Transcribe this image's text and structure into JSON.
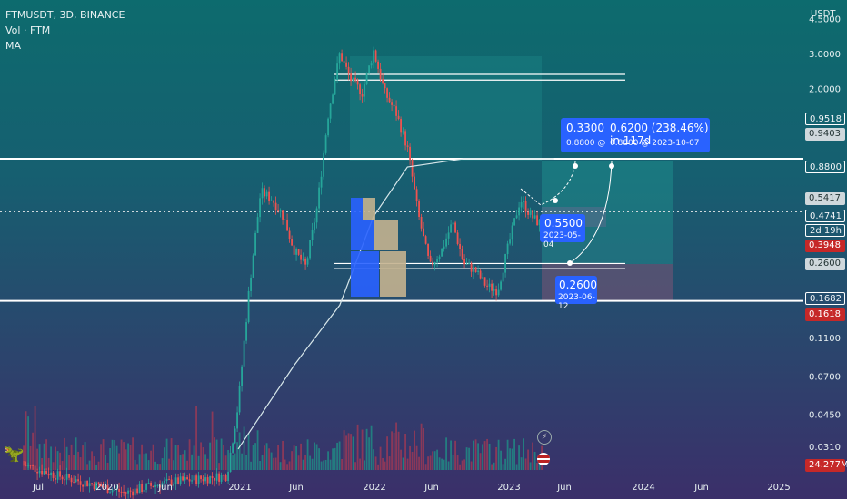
{
  "legend": {
    "symbol": "FTMUSDT, 3D, BINANCE",
    "line2": "Vol · FTM",
    "line3": "MA"
  },
  "colors": {
    "up": "#26a69a",
    "down": "#ef5350",
    "vol_up": "#1f8f86",
    "vol_down": "#a03a55",
    "hline": "#ffffff",
    "ma": "#d7e7ea",
    "tool": "#2962ff",
    "text": "#e8f1f2"
  },
  "chart_data": {
    "type": "candlestick",
    "symbol": "FTMUSDT",
    "interval": "3D",
    "exchange": "BINANCE",
    "y_scale": "log",
    "y_unit": "USDT",
    "ylim": [
      0.02,
      5.5
    ],
    "x_tick_labels": [
      "Jul",
      "2020",
      "Jun",
      "2021",
      "Jun",
      "2022",
      "Jun",
      "2023",
      "Jun",
      "2024",
      "Jun",
      "2025"
    ],
    "y_tick_labels": [
      "4.5000",
      "3.0000",
      "2.0000",
      "0.8800",
      "0.1100",
      "0.0700",
      "0.0450",
      "0.0310"
    ],
    "price_tags": [
      {
        "label": "0.9518",
        "style": "dark"
      },
      {
        "label": "0.9403",
        "style": "grey"
      },
      {
        "label": "0.8800",
        "style": "dark"
      },
      {
        "label": "0.5417",
        "style": "grey"
      },
      {
        "label": "0.4741",
        "style": "dark"
      },
      {
        "label": "2d 19h",
        "style": "dark"
      },
      {
        "label": "0.3948",
        "style": "red"
      },
      {
        "label": "0.2600",
        "style": "grey"
      },
      {
        "label": "0.1682",
        "style": "dark"
      },
      {
        "label": "0.1618",
        "style": "red"
      },
      {
        "label": "24.277M",
        "style": "red"
      }
    ],
    "close_series": [
      {
        "date": "2019-06",
        "close": 0.025
      },
      {
        "date": "2019-09",
        "close": 0.022
      },
      {
        "date": "2019-12",
        "close": 0.02
      },
      {
        "date": "2020-03",
        "close": 0.018
      },
      {
        "date": "2020-06",
        "close": 0.02
      },
      {
        "date": "2020-09",
        "close": 0.021
      },
      {
        "date": "2020-12",
        "close": 0.022
      },
      {
        "date": "2021-01",
        "close": 0.05
      },
      {
        "date": "2021-02",
        "close": 0.2
      },
      {
        "date": "2021-03",
        "close": 0.6
      },
      {
        "date": "2021-04",
        "close": 0.55
      },
      {
        "date": "2021-05",
        "close": 0.45
      },
      {
        "date": "2021-06",
        "close": 0.3
      },
      {
        "date": "2021-07",
        "close": 0.25
      },
      {
        "date": "2021-08",
        "close": 0.5
      },
      {
        "date": "2021-09",
        "close": 1.5
      },
      {
        "date": "2021-10",
        "close": 3.0
      },
      {
        "date": "2021-11",
        "close": 2.2
      },
      {
        "date": "2021-12",
        "close": 1.9
      },
      {
        "date": "2022-01",
        "close": 3.1
      },
      {
        "date": "2022-02",
        "close": 1.9
      },
      {
        "date": "2022-03",
        "close": 1.5
      },
      {
        "date": "2022-04",
        "close": 1.0
      },
      {
        "date": "2022-05",
        "close": 0.45
      },
      {
        "date": "2022-06",
        "close": 0.25
      },
      {
        "date": "2022-07",
        "close": 0.3
      },
      {
        "date": "2022-08",
        "close": 0.42
      },
      {
        "date": "2022-09",
        "close": 0.26
      },
      {
        "date": "2022-10",
        "close": 0.24
      },
      {
        "date": "2022-11",
        "close": 0.2
      },
      {
        "date": "2022-12",
        "close": 0.19
      },
      {
        "date": "2023-01",
        "close": 0.33
      },
      {
        "date": "2023-02",
        "close": 0.55
      },
      {
        "date": "2023-03",
        "close": 0.45
      },
      {
        "date": "2023-04",
        "close": 0.4
      }
    ],
    "moving_average": [
      {
        "date": "2021-01",
        "value": 0.03
      },
      {
        "date": "2021-06",
        "value": 0.08
      },
      {
        "date": "2021-10",
        "value": 0.16
      },
      {
        "date": "2022-01",
        "value": 0.45
      },
      {
        "date": "2022-04",
        "value": 0.8
      },
      {
        "date": "2022-09",
        "value": 0.88
      },
      {
        "date": "2023-05",
        "value": 0.88
      }
    ],
    "horizontal_levels": [
      0.88,
      0.1682
    ],
    "resistance_band": [
      2.2,
      2.35
    ],
    "support_band": [
      0.245,
      0.26
    ],
    "projection": {
      "entry": {
        "price": "0.5500",
        "date": "2023-05-04"
      },
      "low": {
        "price": "0.2600",
        "date": "2023-06-12"
      },
      "target_a": {
        "move": "0.3300",
        "price": "0.8800",
        "date": ""
      },
      "target_b": {
        "move": "0.6200 (238.46%) in 117d",
        "price": "0.8800",
        "date": "2023-10-07"
      }
    }
  },
  "callouts": {
    "top_a_big": "0.3300",
    "top_a_small": "0.8800 @",
    "top_b_big": "0.6200 (238.46%) in 117d",
    "top_b_small": "0.8800 @ 2023-10-07",
    "entry_price": "0.5500",
    "entry_date": "2023-05-04",
    "low_price": "0.2600",
    "low_date": "2023-06-12"
  }
}
